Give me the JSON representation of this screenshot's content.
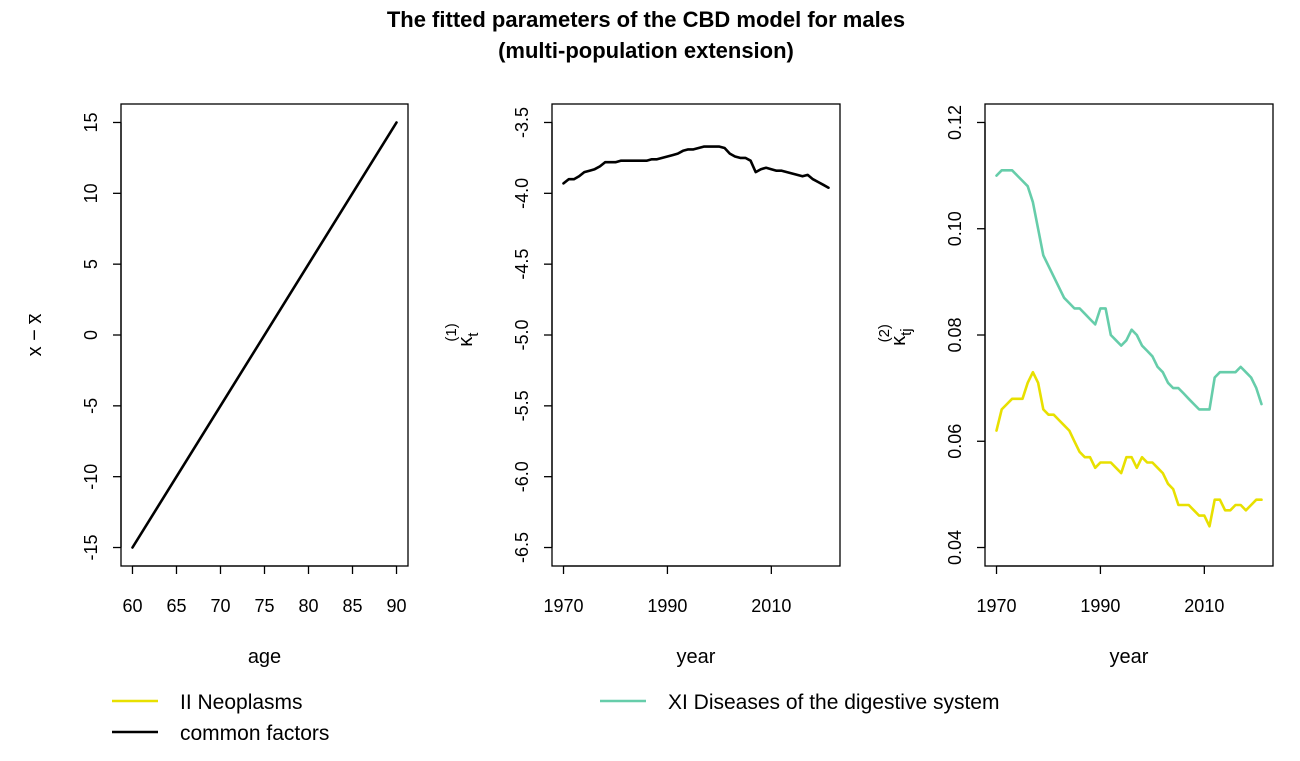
{
  "title_line1": "The fitted parameters of the CBD model for males",
  "title_line2": "(multi-population extension)",
  "legend": [
    {
      "label": "II Neoplasms",
      "color": "#e8e000"
    },
    {
      "label": "XI Diseases of the digestive system",
      "color": "#66cdaa"
    },
    {
      "label": "common factors",
      "color": "#000000"
    }
  ],
  "chart_data": [
    {
      "type": "line",
      "xlabel": "age",
      "ylabel": "x − x̄",
      "xlim": [
        60,
        90
      ],
      "ylim": [
        -15,
        15
      ],
      "x_ticks": [
        "60",
        "65",
        "70",
        "75",
        "80",
        "85",
        "90"
      ],
      "y_ticks": [
        "-15",
        "-10",
        "-5",
        "0",
        "5",
        "10",
        "15"
      ],
      "series": [
        {
          "name": "common factors",
          "color": "#000000",
          "x": [
            60,
            90
          ],
          "y": [
            -15,
            15
          ]
        }
      ]
    },
    {
      "type": "line",
      "xlabel": "year",
      "ylabel": "κt(1)",
      "xlim": [
        1970,
        2021
      ],
      "ylim": [
        -6.5,
        -3.5
      ],
      "x_ticks": [
        "1970",
        "1990",
        "2010"
      ],
      "y_ticks": [
        "-6.5",
        "-6.0",
        "-5.5",
        "-5.0",
        "-4.5",
        "-4.0",
        "-3.5"
      ],
      "series": [
        {
          "name": "common factors",
          "color": "#000000",
          "x": [
            1970,
            1971,
            1972,
            1973,
            1974,
            1975,
            1976,
            1977,
            1978,
            1979,
            1980,
            1981,
            1982,
            1983,
            1984,
            1985,
            1986,
            1987,
            1988,
            1989,
            1990,
            1991,
            1992,
            1993,
            1994,
            1995,
            1996,
            1997,
            1998,
            1999,
            2000,
            2001,
            2002,
            2003,
            2004,
            2005,
            2006,
            2007,
            2008,
            2009,
            2010,
            2011,
            2012,
            2013,
            2014,
            2015,
            2016,
            2017,
            2018,
            2019,
            2020,
            2021
          ],
          "y": [
            -3.93,
            -3.9,
            -3.9,
            -3.88,
            -3.85,
            -3.84,
            -3.83,
            -3.81,
            -3.78,
            -3.78,
            -3.78,
            -3.77,
            -3.77,
            -3.77,
            -3.77,
            -3.77,
            -3.77,
            -3.76,
            -3.76,
            -3.75,
            -3.74,
            -3.73,
            -3.72,
            -3.7,
            -3.69,
            -3.69,
            -3.68,
            -3.67,
            -3.67,
            -3.67,
            -3.67,
            -3.68,
            -3.72,
            -3.74,
            -3.75,
            -3.75,
            -3.77,
            -3.85,
            -3.83,
            -3.82,
            -3.83,
            -3.84,
            -3.84,
            -3.85,
            -3.86,
            -3.87,
            -3.88,
            -3.87,
            -3.9,
            -3.92,
            -3.94,
            -3.96
          ]
        }
      ]
    },
    {
      "type": "line",
      "xlabel": "year",
      "ylabel": "κtj(2)",
      "xlim": [
        1970,
        2021
      ],
      "ylim": [
        0.04,
        0.12
      ],
      "x_ticks": [
        "1970",
        "1990",
        "2010"
      ],
      "y_ticks": [
        "0.04",
        "0.06",
        "0.08",
        "0.10",
        "0.12"
      ],
      "series": [
        {
          "name": "II Neoplasms",
          "color": "#e8e000",
          "x": [
            1970,
            1971,
            1972,
            1973,
            1974,
            1975,
            1976,
            1977,
            1978,
            1979,
            1980,
            1981,
            1982,
            1983,
            1984,
            1985,
            1986,
            1987,
            1988,
            1989,
            1990,
            1991,
            1992,
            1993,
            1994,
            1995,
            1996,
            1997,
            1998,
            1999,
            2000,
            2001,
            2002,
            2003,
            2004,
            2005,
            2006,
            2007,
            2008,
            2009,
            2010,
            2011,
            2012,
            2013,
            2014,
            2015,
            2016,
            2017,
            2018,
            2019,
            2020,
            2021
          ],
          "y": [
            0.062,
            0.066,
            0.067,
            0.068,
            0.068,
            0.068,
            0.071,
            0.073,
            0.071,
            0.066,
            0.065,
            0.065,
            0.064,
            0.063,
            0.062,
            0.06,
            0.058,
            0.057,
            0.057,
            0.055,
            0.056,
            0.056,
            0.056,
            0.055,
            0.054,
            0.057,
            0.057,
            0.055,
            0.057,
            0.056,
            0.056,
            0.055,
            0.054,
            0.052,
            0.051,
            0.048,
            0.048,
            0.048,
            0.047,
            0.046,
            0.046,
            0.044,
            0.049,
            0.049,
            0.047,
            0.047,
            0.048,
            0.048,
            0.047,
            0.048,
            0.049,
            0.049
          ]
        },
        {
          "name": "XI Diseases of the digestive system",
          "color": "#66cdaa",
          "x": [
            1970,
            1971,
            1972,
            1973,
            1974,
            1975,
            1976,
            1977,
            1978,
            1979,
            1980,
            1981,
            1982,
            1983,
            1984,
            1985,
            1986,
            1987,
            1988,
            1989,
            1990,
            1991,
            1992,
            1993,
            1994,
            1995,
            1996,
            1997,
            1998,
            1999,
            2000,
            2001,
            2002,
            2003,
            2004,
            2005,
            2006,
            2007,
            2008,
            2009,
            2010,
            2011,
            2012,
            2013,
            2014,
            2015,
            2016,
            2017,
            2018,
            2019,
            2020,
            2021
          ],
          "y": [
            0.11,
            0.111,
            0.111,
            0.111,
            0.11,
            0.109,
            0.108,
            0.105,
            0.1,
            0.095,
            0.093,
            0.091,
            0.089,
            0.087,
            0.086,
            0.085,
            0.085,
            0.084,
            0.083,
            0.082,
            0.085,
            0.085,
            0.08,
            0.079,
            0.078,
            0.079,
            0.081,
            0.08,
            0.078,
            0.077,
            0.076,
            0.074,
            0.073,
            0.071,
            0.07,
            0.07,
            0.069,
            0.068,
            0.067,
            0.066,
            0.066,
            0.066,
            0.072,
            0.073,
            0.073,
            0.073,
            0.073,
            0.074,
            0.073,
            0.072,
            0.07,
            0.067
          ]
        }
      ]
    }
  ]
}
